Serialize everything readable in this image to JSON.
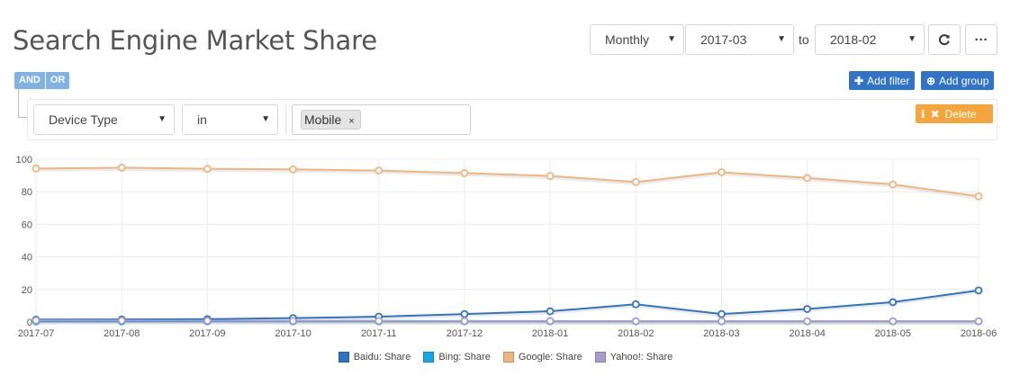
{
  "header": {
    "title": "Search Engine Market Share"
  },
  "controls": {
    "granularity": "Monthly",
    "from": "2017-03",
    "to_label": "to",
    "to": "2018-02",
    "refresh_icon": "refresh-icon",
    "more_icon": "more-icon"
  },
  "filter": {
    "and_label": "AND",
    "or_label": "OR",
    "add_filter_label": "Add filter",
    "add_group_label": "Add group",
    "field": "Device Type",
    "operator": "in",
    "value_tag": "Mobile",
    "remove_tag": "×",
    "delete_label": "Delete",
    "and_color": "#7fb2e5",
    "button_color": "#3073c7",
    "delete_color": "#f4a63c"
  },
  "chart_data": {
    "type": "line",
    "categories": [
      "2017-07",
      "2017-08",
      "2017-09",
      "2017-10",
      "2017-11",
      "2017-12",
      "2018-01",
      "2018-02",
      "2018-03",
      "2018-04",
      "2018-05",
      "2018-06"
    ],
    "ylim": [
      0,
      100
    ],
    "yticks": [
      "0",
      "20",
      "40",
      "60",
      "80",
      "100"
    ],
    "grid": true,
    "legend_position": "bottom",
    "series": [
      {
        "name": "Baidu: Share",
        "color": "#2f73c5",
        "values": [
          1.5,
          1.6,
          1.8,
          2.4,
          3.3,
          4.9,
          6.6,
          10.9,
          4.9,
          8.0,
          12.2,
          19.4
        ]
      },
      {
        "name": "Bing: Share",
        "color": "#17a8e3",
        "values": [
          0.4,
          0.4,
          0.4,
          0.4,
          0.4,
          0.4,
          0.4,
          0.4,
          0.4,
          0.4,
          0.4,
          0.4
        ]
      },
      {
        "name": "Google: Share",
        "color": "#f1b47e",
        "values": [
          94.3,
          94.8,
          94.1,
          93.8,
          93.0,
          91.5,
          89.7,
          86.0,
          92.0,
          88.5,
          84.5,
          77.2
        ]
      },
      {
        "name": "Yahoo!: Share",
        "color": "#a99bd0",
        "values": [
          1.0,
          0.9,
          0.8,
          0.7,
          0.7,
          0.6,
          0.6,
          0.5,
          0.5,
          0.5,
          0.5,
          0.5
        ]
      }
    ]
  }
}
